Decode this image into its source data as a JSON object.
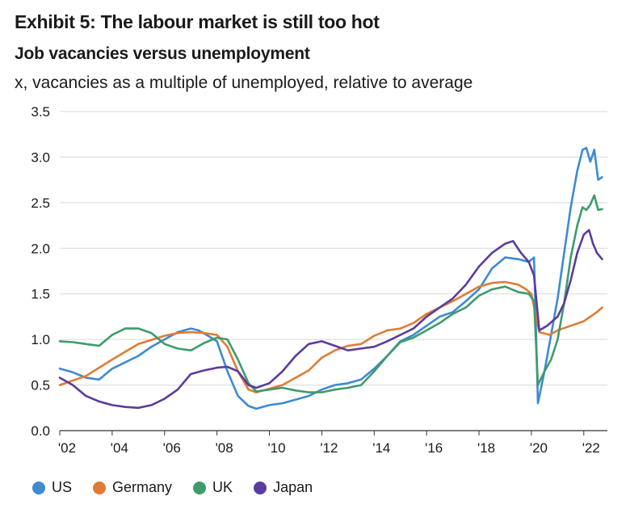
{
  "header": {
    "exhibit": "Exhibit 5: The labour market is still too hot",
    "title": "Job vacancies versus unemployment",
    "subtitle": "x, vacancies as a multiple of unemployed, relative to average"
  },
  "chart_data": {
    "type": "line",
    "title": "Job vacancies versus unemployment",
    "xlabel": "",
    "ylabel": "x, vacancies as a multiple of unemployed, relative to average",
    "xlim": [
      2002,
      2022.9
    ],
    "ylim": [
      0,
      3.5
    ],
    "yticks": [
      0.0,
      0.5,
      1.0,
      1.5,
      2.0,
      2.5,
      3.0,
      3.5
    ],
    "ytick_labels": [
      "0.0",
      "0.5",
      "1.0",
      "1.5",
      "2.0",
      "2.5",
      "3.0",
      "3.5"
    ],
    "xticks": [
      2002,
      2004,
      2006,
      2008,
      2010,
      2012,
      2014,
      2016,
      2018,
      2020,
      2022
    ],
    "xtick_labels": [
      "'02",
      "'04",
      "'06",
      "'08",
      "'10",
      "'12",
      "'14",
      "'16",
      "'18",
      "'20",
      "'22"
    ],
    "grid": "horizontal",
    "legend": "bottom",
    "series": [
      {
        "name": "US",
        "color": "#3d8bd0",
        "x": [
          2002.0,
          2002.5,
          2003.0,
          2003.5,
          2004.0,
          2004.5,
          2005.0,
          2005.5,
          2006.0,
          2006.5,
          2007.0,
          2007.3,
          2007.6,
          2008.0,
          2008.4,
          2008.8,
          2009.2,
          2009.5,
          2010.0,
          2010.5,
          2011.0,
          2011.5,
          2012.0,
          2012.5,
          2013.0,
          2013.5,
          2014.0,
          2014.5,
          2015.0,
          2015.5,
          2016.0,
          2016.5,
          2017.0,
          2017.5,
          2018.0,
          2018.5,
          2019.0,
          2019.5,
          2019.9,
          2020.1,
          2020.25,
          2020.5,
          2020.75,
          2021.0,
          2021.25,
          2021.5,
          2021.75,
          2021.95,
          2022.1,
          2022.25,
          2022.4,
          2022.55,
          2022.7
        ],
        "values": [
          0.68,
          0.64,
          0.58,
          0.56,
          0.68,
          0.75,
          0.82,
          0.92,
          1.0,
          1.08,
          1.12,
          1.1,
          1.05,
          0.98,
          0.65,
          0.38,
          0.27,
          0.24,
          0.28,
          0.3,
          0.34,
          0.38,
          0.45,
          0.5,
          0.52,
          0.56,
          0.68,
          0.82,
          0.98,
          1.05,
          1.15,
          1.25,
          1.3,
          1.42,
          1.55,
          1.78,
          1.9,
          1.88,
          1.85,
          1.9,
          0.3,
          0.65,
          1.05,
          1.45,
          1.95,
          2.45,
          2.85,
          3.08,
          3.1,
          2.95,
          3.08,
          2.75,
          2.78
        ]
      },
      {
        "name": "Germany",
        "color": "#e07b35",
        "x": [
          2002.0,
          2003.0,
          2004.0,
          2005.0,
          2006.0,
          2006.5,
          2007.0,
          2007.5,
          2008.0,
          2008.4,
          2008.8,
          2009.2,
          2009.5,
          2010.0,
          2010.5,
          2011.0,
          2011.5,
          2012.0,
          2012.5,
          2013.0,
          2013.5,
          2014.0,
          2014.5,
          2015.0,
          2015.5,
          2016.0,
          2016.5,
          2017.0,
          2017.5,
          2018.0,
          2018.5,
          2019.0,
          2019.5,
          2019.8,
          2020.0,
          2020.3,
          2020.7,
          2021.0,
          2021.5,
          2022.0,
          2022.5,
          2022.7
        ],
        "values": [
          0.5,
          0.6,
          0.78,
          0.95,
          1.04,
          1.07,
          1.08,
          1.07,
          1.05,
          0.92,
          0.65,
          0.45,
          0.42,
          0.46,
          0.5,
          0.58,
          0.66,
          0.8,
          0.88,
          0.93,
          0.95,
          1.04,
          1.1,
          1.12,
          1.18,
          1.28,
          1.35,
          1.42,
          1.5,
          1.58,
          1.62,
          1.63,
          1.6,
          1.55,
          1.5,
          1.08,
          1.05,
          1.1,
          1.15,
          1.2,
          1.3,
          1.35
        ]
      },
      {
        "name": "UK",
        "color": "#3e9b6b",
        "x": [
          2002.0,
          2002.5,
          2003.0,
          2003.5,
          2004.0,
          2004.5,
          2005.0,
          2005.5,
          2006.0,
          2006.5,
          2007.0,
          2007.5,
          2008.0,
          2008.4,
          2008.8,
          2009.2,
          2009.5,
          2010.0,
          2010.5,
          2011.0,
          2011.5,
          2012.0,
          2012.5,
          2013.0,
          2013.5,
          2014.0,
          2014.5,
          2015.0,
          2015.5,
          2016.0,
          2016.5,
          2017.0,
          2017.5,
          2018.0,
          2018.5,
          2019.0,
          2019.5,
          2019.9,
          2020.1,
          2020.25,
          2020.5,
          2020.75,
          2021.0,
          2021.25,
          2021.5,
          2021.75,
          2021.95,
          2022.1,
          2022.25,
          2022.4,
          2022.55,
          2022.7
        ],
        "values": [
          0.98,
          0.97,
          0.95,
          0.93,
          1.05,
          1.12,
          1.12,
          1.07,
          0.95,
          0.9,
          0.88,
          0.96,
          1.02,
          1.0,
          0.78,
          0.52,
          0.43,
          0.45,
          0.47,
          0.44,
          0.42,
          0.42,
          0.45,
          0.47,
          0.5,
          0.65,
          0.82,
          0.97,
          1.02,
          1.1,
          1.18,
          1.28,
          1.35,
          1.48,
          1.55,
          1.58,
          1.52,
          1.5,
          1.42,
          0.5,
          0.65,
          0.78,
          1.0,
          1.4,
          1.9,
          2.25,
          2.45,
          2.42,
          2.48,
          2.58,
          2.42,
          2.43
        ]
      },
      {
        "name": "Japan",
        "color": "#5a3c9c",
        "x": [
          2002.0,
          2002.5,
          2003.0,
          2003.5,
          2004.0,
          2004.5,
          2005.0,
          2005.5,
          2006.0,
          2006.5,
          2007.0,
          2007.5,
          2008.0,
          2008.4,
          2008.8,
          2009.2,
          2009.5,
          2010.0,
          2010.5,
          2011.0,
          2011.5,
          2012.0,
          2012.5,
          2013.0,
          2013.5,
          2014.0,
          2014.5,
          2015.0,
          2015.5,
          2016.0,
          2016.5,
          2017.0,
          2017.5,
          2018.0,
          2018.5,
          2019.0,
          2019.3,
          2019.6,
          2019.9,
          2020.1,
          2020.3,
          2020.6,
          2021.0,
          2021.25,
          2021.5,
          2021.75,
          2022.0,
          2022.2,
          2022.35,
          2022.5,
          2022.7
        ],
        "values": [
          0.58,
          0.5,
          0.38,
          0.32,
          0.28,
          0.26,
          0.25,
          0.28,
          0.35,
          0.45,
          0.62,
          0.66,
          0.69,
          0.7,
          0.65,
          0.5,
          0.47,
          0.52,
          0.65,
          0.82,
          0.95,
          0.98,
          0.93,
          0.88,
          0.9,
          0.92,
          0.98,
          1.05,
          1.12,
          1.25,
          1.35,
          1.45,
          1.6,
          1.8,
          1.95,
          2.05,
          2.08,
          1.95,
          1.85,
          1.7,
          1.1,
          1.15,
          1.25,
          1.4,
          1.65,
          1.95,
          2.15,
          2.2,
          2.05,
          1.95,
          1.88
        ]
      }
    ]
  }
}
